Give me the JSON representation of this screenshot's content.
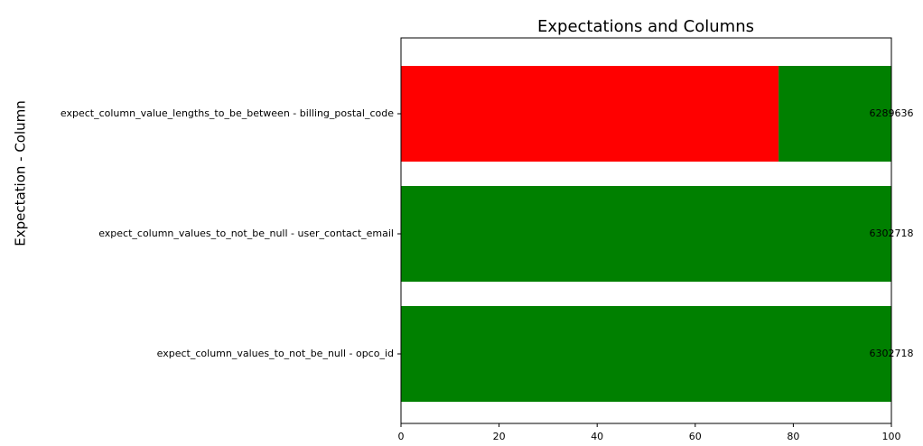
{
  "chart_data": {
    "type": "stacked-barh",
    "title": "Expectations and Columns",
    "y_label": "Expectation - Column",
    "categories": [
      "expect_column_value_lengths_to_be_between - billing_postal_code",
      "expect_column_values_to_not_be_null - user_contact_email",
      "expect_column_values_to_not_be_null - opco_id"
    ],
    "series": [
      {
        "color": "#ff0000",
        "values": [
          77,
          0,
          0
        ]
      },
      {
        "color": "#008000",
        "values": [
          23,
          100,
          100
        ]
      }
    ],
    "counts": [
      6289636,
      6302718,
      6302718
    ],
    "xlim": [
      0,
      100
    ],
    "xticks": [
      0,
      20,
      40,
      60,
      80,
      100
    ]
  }
}
